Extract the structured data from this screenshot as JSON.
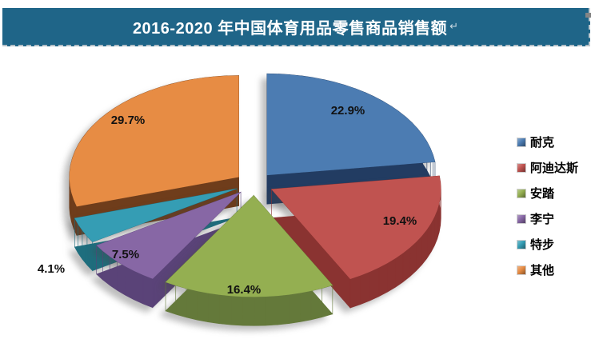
{
  "banner": {
    "title": "2016-2020 年中国体育用品零售商品销售额",
    "paragraph_mark": "↵",
    "bg_color": "#1F6588",
    "text_color": "#FFFFFF"
  },
  "chart_data": {
    "type": "pie",
    "style": "3d-exploded",
    "title": "2016-2020 年中国体育用品零售商品销售额",
    "unit": "%",
    "legend_position": "right",
    "label_format": "percent-one-decimal",
    "slices": [
      {
        "label": "耐克",
        "value": 22.9,
        "color": "#4C7CB2",
        "side_color": "#223C62"
      },
      {
        "label": "阿迪达斯",
        "value": 19.4,
        "color": "#C05350",
        "side_color": "#8A3331"
      },
      {
        "label": "安踏",
        "value": 16.4,
        "color": "#94AF51",
        "side_color": "#64793A"
      },
      {
        "label": "李宁",
        "value": 7.5,
        "color": "#8767A5",
        "side_color": "#5A4378"
      },
      {
        "label": "特步",
        "value": 4.1,
        "color": "#359DB4",
        "side_color": "#1E6E7E"
      },
      {
        "label": "其他",
        "value": 29.7,
        "color": "#E78C44",
        "side_color": "#6F3D1B"
      }
    ]
  }
}
